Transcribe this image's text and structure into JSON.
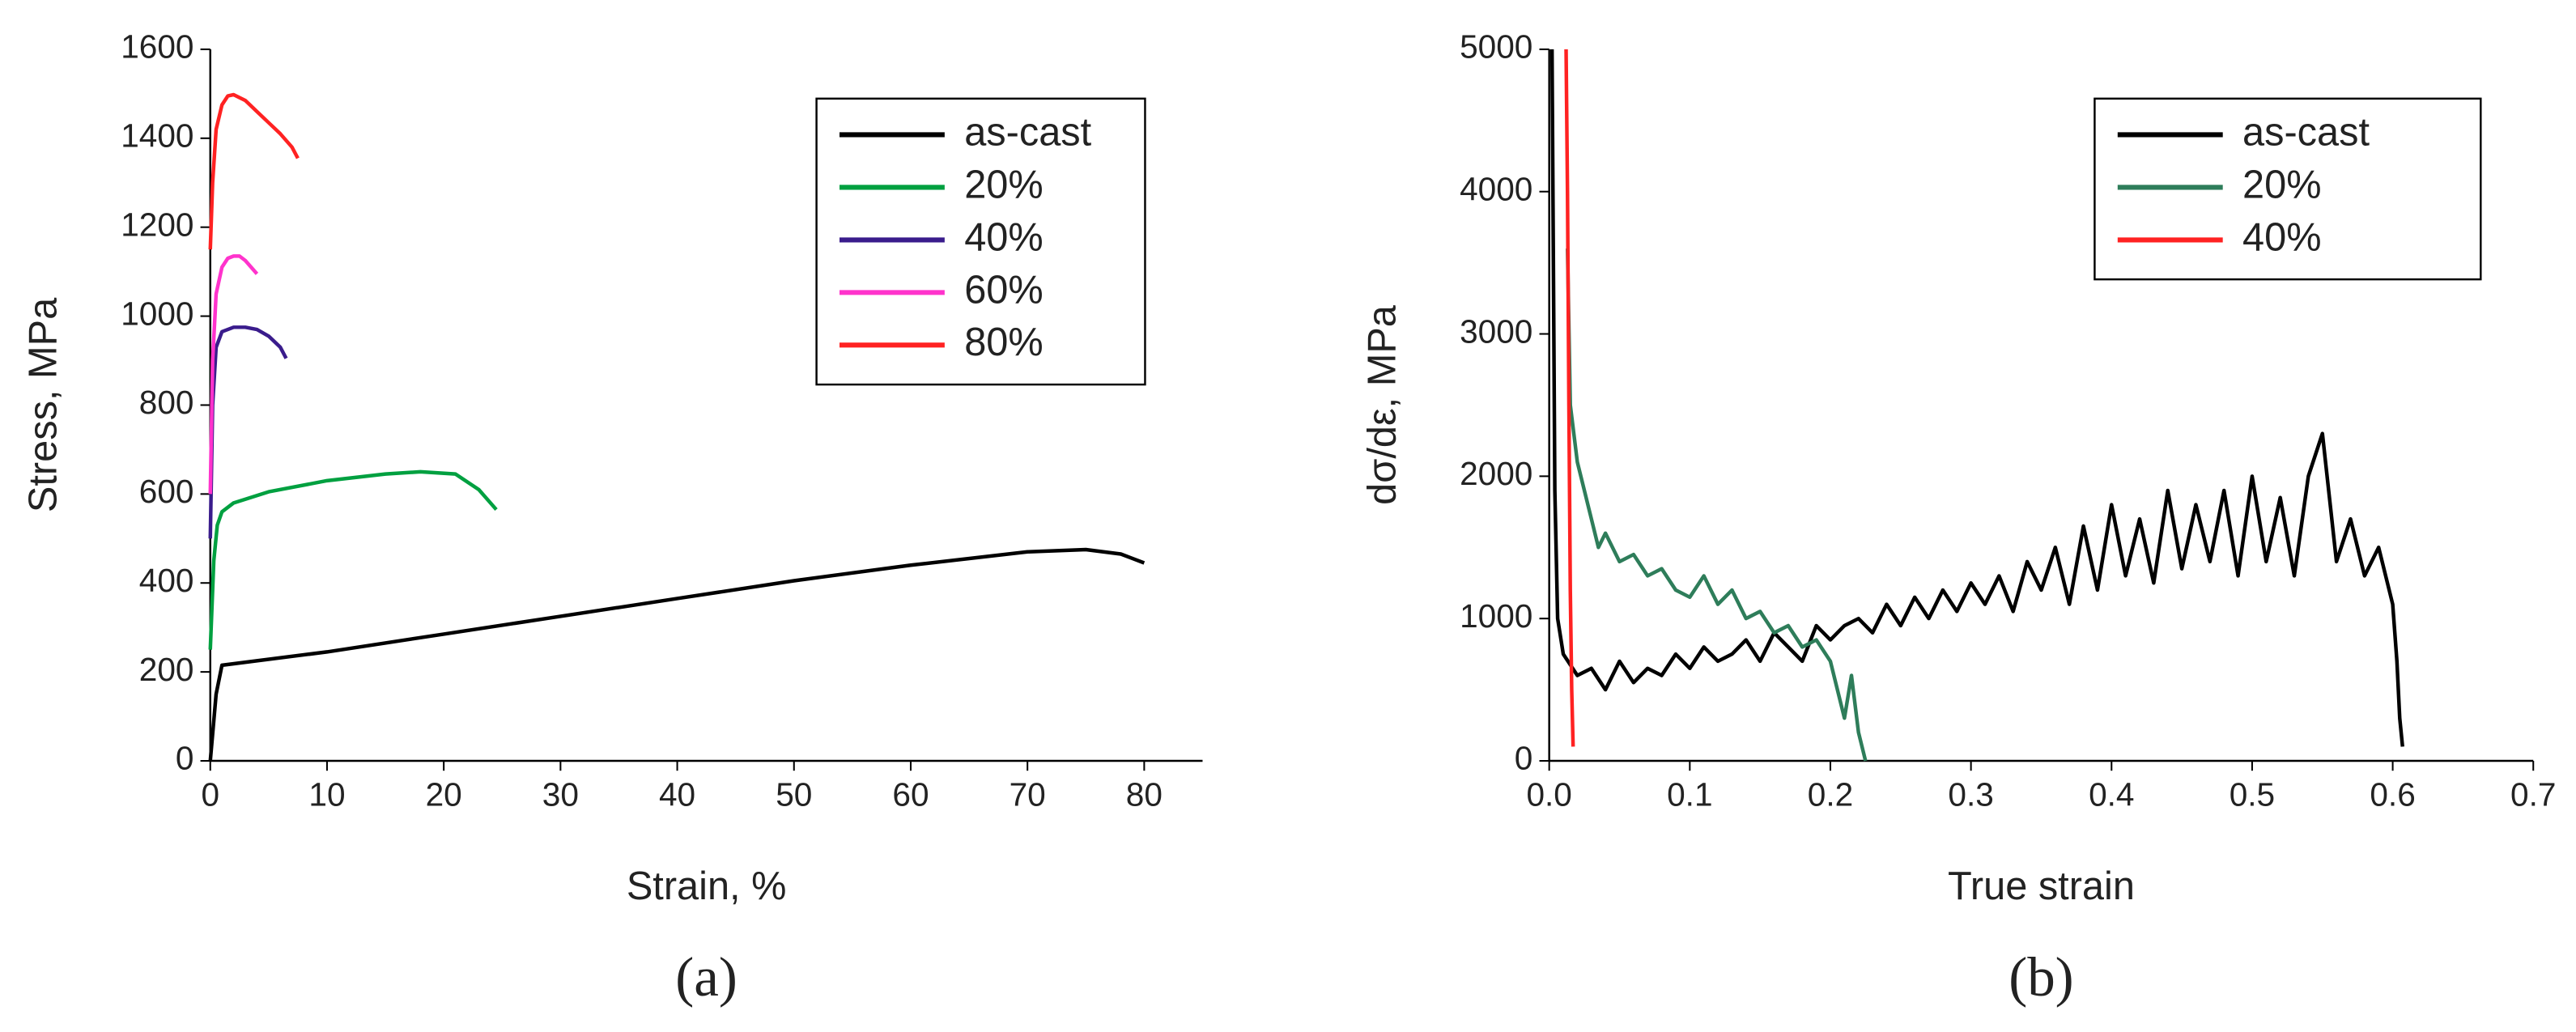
{
  "chart_data": [
    {
      "type": "line",
      "panel_label": "(a)",
      "xlabel": "Strain, %",
      "ylabel": "Stress, MPa",
      "xlim": [
        0,
        85
      ],
      "ylim": [
        0,
        1600
      ],
      "xticks": [
        0,
        10,
        20,
        30,
        40,
        50,
        60,
        70,
        80
      ],
      "yticks": [
        0,
        200,
        400,
        600,
        800,
        1000,
        1200,
        1400,
        1600
      ],
      "legend_position": "upper center",
      "series": [
        {
          "name": "as-cast",
          "color": "#000000",
          "x": [
            0,
            0.5,
            1,
            10,
            20,
            30,
            40,
            50,
            60,
            70,
            75,
            78,
            80
          ],
          "values": [
            0,
            150,
            215,
            245,
            285,
            325,
            365,
            405,
            440,
            470,
            475,
            465,
            445
          ]
        },
        {
          "name": "20%",
          "color": "#00a040",
          "x": [
            0,
            0.3,
            0.6,
            1,
            2,
            5,
            10,
            15,
            18,
            21,
            23,
            24.5
          ],
          "values": [
            250,
            450,
            530,
            560,
            580,
            605,
            630,
            645,
            650,
            645,
            610,
            565
          ]
        },
        {
          "name": "40%",
          "color": "#3a1c8c",
          "x": [
            0,
            0.2,
            0.5,
            1,
            2,
            3,
            4,
            5,
            6,
            6.5
          ],
          "values": [
            500,
            800,
            930,
            965,
            975,
            975,
            970,
            955,
            930,
            905
          ]
        },
        {
          "name": "60%",
          "color": "#ff33cc",
          "x": [
            0,
            0.2,
            0.5,
            1,
            1.5,
            2,
            2.5,
            3,
            3.5,
            4
          ],
          "values": [
            600,
            900,
            1050,
            1110,
            1130,
            1135,
            1135,
            1125,
            1110,
            1095
          ]
        },
        {
          "name": "80%",
          "color": "#ff2222",
          "x": [
            0,
            0.2,
            0.5,
            1,
            1.5,
            2,
            3,
            4,
            5,
            6,
            7,
            7.5
          ],
          "values": [
            1150,
            1300,
            1420,
            1475,
            1495,
            1498,
            1485,
            1460,
            1435,
            1410,
            1380,
            1355
          ]
        }
      ]
    },
    {
      "type": "line",
      "panel_label": "(b)",
      "xlabel": "True strain",
      "ylabel": "dσ/dε, MPa",
      "xlim": [
        0,
        0.7
      ],
      "ylim": [
        0,
        5000
      ],
      "xticks": [
        {
          "value": 0,
          "label": "0.0"
        },
        0.1,
        0.2,
        0.3,
        0.4,
        0.5,
        0.6,
        0.7
      ],
      "yticks": [
        0,
        1000,
        2000,
        3000,
        4000,
        5000
      ],
      "legend_position": "upper right",
      "series": [
        {
          "name": "as-cast",
          "color": "#000000",
          "x": [
            0.002,
            0.004,
            0.006,
            0.01,
            0.02,
            0.03,
            0.04,
            0.05,
            0.06,
            0.07,
            0.08,
            0.09,
            0.1,
            0.11,
            0.12,
            0.13,
            0.14,
            0.15,
            0.16,
            0.17,
            0.18,
            0.19,
            0.2,
            0.21,
            0.22,
            0.23,
            0.24,
            0.25,
            0.26,
            0.27,
            0.28,
            0.29,
            0.3,
            0.31,
            0.32,
            0.33,
            0.34,
            0.35,
            0.36,
            0.37,
            0.38,
            0.39,
            0.4,
            0.41,
            0.42,
            0.43,
            0.44,
            0.45,
            0.46,
            0.47,
            0.48,
            0.49,
            0.5,
            0.51,
            0.52,
            0.53,
            0.54,
            0.55,
            0.56,
            0.57,
            0.58,
            0.59,
            0.6,
            0.603,
            0.605,
            0.607
          ],
          "values": [
            5000,
            1900,
            1000,
            750,
            600,
            650,
            500,
            700,
            550,
            650,
            600,
            750,
            650,
            800,
            700,
            750,
            850,
            700,
            900,
            800,
            700,
            950,
            850,
            950,
            1000,
            900,
            1100,
            950,
            1150,
            1000,
            1200,
            1050,
            1250,
            1100,
            1300,
            1050,
            1400,
            1200,
            1500,
            1100,
            1650,
            1200,
            1800,
            1300,
            1700,
            1250,
            1900,
            1350,
            1800,
            1400,
            1900,
            1300,
            2000,
            1400,
            1850,
            1300,
            2000,
            2300,
            1400,
            1700,
            1300,
            1500,
            1100,
            700,
            300,
            100
          ]
        },
        {
          "name": "20%",
          "color": "#2e7d5a",
          "x": [
            0.013,
            0.015,
            0.02,
            0.025,
            0.03,
            0.035,
            0.04,
            0.05,
            0.06,
            0.07,
            0.08,
            0.09,
            0.1,
            0.11,
            0.12,
            0.13,
            0.14,
            0.15,
            0.16,
            0.17,
            0.18,
            0.19,
            0.2,
            0.205,
            0.21,
            0.215,
            0.22,
            0.225
          ],
          "values": [
            3600,
            2500,
            2100,
            1900,
            1700,
            1500,
            1600,
            1400,
            1450,
            1300,
            1350,
            1200,
            1150,
            1300,
            1100,
            1200,
            1000,
            1050,
            900,
            950,
            800,
            850,
            700,
            500,
            300,
            600,
            200,
            0
          ]
        },
        {
          "name": "40%",
          "color": "#ff2222",
          "x": [
            0.012,
            0.013,
            0.014,
            0.015,
            0.016,
            0.017
          ],
          "values": [
            5000,
            4000,
            2500,
            1200,
            500,
            100
          ]
        }
      ]
    }
  ]
}
